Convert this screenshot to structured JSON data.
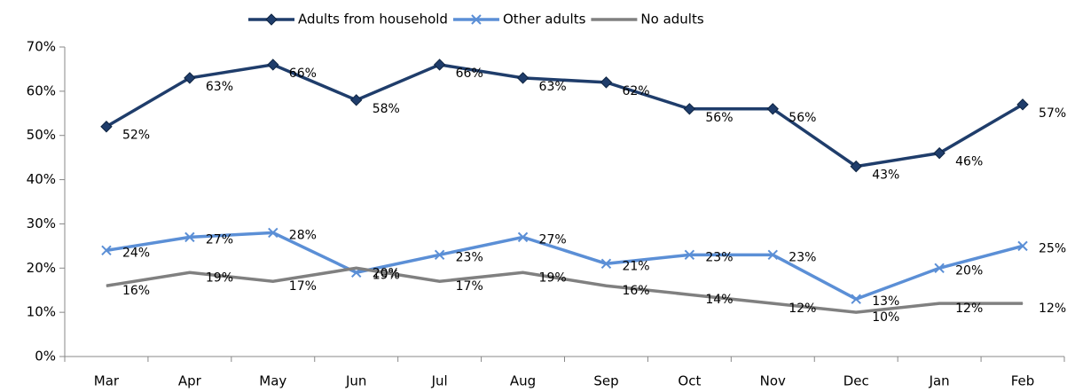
{
  "chart_data": {
    "type": "line",
    "categories": [
      "Mar",
      "Apr",
      "May",
      "Jun",
      "Jul",
      "Aug",
      "Sep",
      "Oct",
      "Nov",
      "Dec",
      "Jan",
      "Feb"
    ],
    "series": [
      {
        "name": "Adults from household",
        "color": "#1f3d6b",
        "marker": "diamond",
        "values": [
          52,
          63,
          66,
          58,
          66,
          63,
          62,
          56,
          56,
          43,
          46,
          57
        ],
        "value_labels": [
          "52%",
          "63%",
          "66%",
          "58%",
          "66%",
          "63%",
          "62%",
          "56%",
          "56%",
          "43%",
          "46%",
          "57%"
        ]
      },
      {
        "name": "Other adults",
        "color": "#5b8fd6",
        "marker": "x",
        "values": [
          24,
          27,
          28,
          19,
          23,
          27,
          21,
          23,
          23,
          13,
          20,
          25
        ],
        "value_labels": [
          "24%",
          "27%",
          "28%",
          "19%",
          "23%",
          "27%",
          "21%",
          "23%",
          "23%",
          "13%",
          "20%",
          "25%"
        ]
      },
      {
        "name": "No adults",
        "color": "#808080",
        "marker": "none",
        "values": [
          16,
          19,
          17,
          20,
          17,
          19,
          16,
          14,
          12,
          10,
          12,
          12
        ],
        "value_labels": [
          "16%",
          "19%",
          "17%",
          "20%",
          "17%",
          "19%",
          "16%",
          "14%",
          "12%",
          "10%",
          "12%",
          "12%"
        ]
      }
    ],
    "ylim": [
      0,
      70
    ],
    "yticks": [
      {
        "value": 0,
        "label": "0%"
      },
      {
        "value": 10,
        "label": "10%"
      },
      {
        "value": 20,
        "label": "20%"
      },
      {
        "value": 30,
        "label": "30%"
      },
      {
        "value": 40,
        "label": "40%"
      },
      {
        "value": 50,
        "label": "50%"
      },
      {
        "value": 60,
        "label": "60%"
      },
      {
        "value": 70,
        "label": "70%"
      }
    ],
    "legend": "top",
    "grid": false
  }
}
